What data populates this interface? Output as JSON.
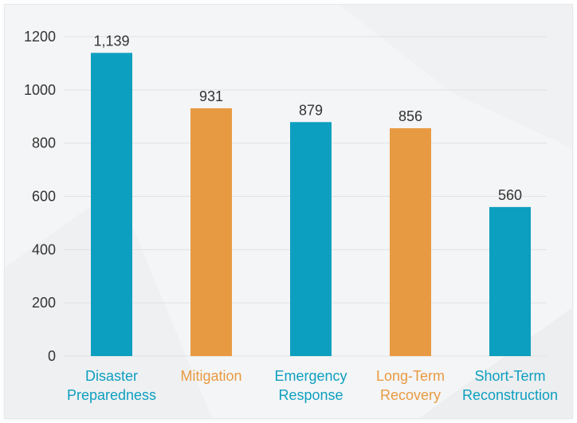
{
  "chart_data": {
    "type": "bar",
    "title": "",
    "xlabel": "",
    "ylabel": "",
    "categories": [
      [
        "Disaster",
        "Preparedness"
      ],
      [
        "Mitigation"
      ],
      [
        "Emergency",
        "Response"
      ],
      [
        "Long-Term",
        "Recovery"
      ],
      [
        "Short-Term",
        "Reconstruction"
      ]
    ],
    "values": [
      1139,
      931,
      879,
      856,
      560
    ],
    "value_labels": [
      "1,139",
      "931",
      "879",
      "856",
      "560"
    ],
    "colors": [
      "#0d9fbf",
      "#e89a42",
      "#0d9fbf",
      "#e89a42",
      "#0d9fbf"
    ],
    "ylim": [
      0,
      1200
    ],
    "yticks": [
      0,
      200,
      400,
      600,
      800,
      1000,
      1200
    ],
    "grid": true,
    "legend": "none"
  }
}
